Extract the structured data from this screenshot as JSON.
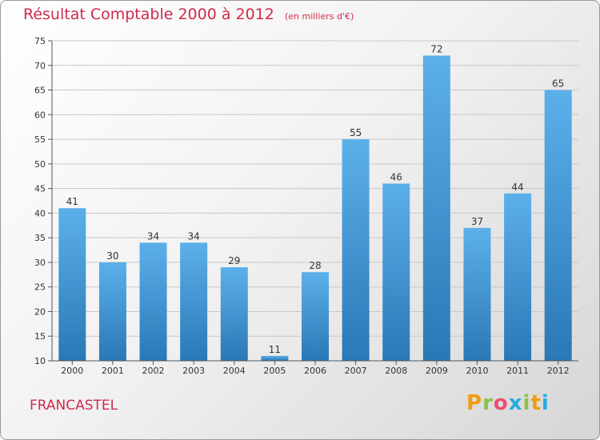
{
  "chart_data": {
    "type": "bar",
    "title": "Résultat Comptable 2000 à 2012",
    "subtitle": "(en milliers d'€)",
    "categories": [
      "2000",
      "2001",
      "2002",
      "2003",
      "2004",
      "2005",
      "2006",
      "2007",
      "2008",
      "2009",
      "2010",
      "2011",
      "2012"
    ],
    "values": [
      41,
      30,
      34,
      34,
      29,
      11,
      28,
      55,
      46,
      72,
      37,
      44,
      65
    ],
    "ylim": [
      10,
      75
    ],
    "yticks": [
      10,
      15,
      20,
      25,
      30,
      35,
      40,
      45,
      50,
      55,
      60,
      65,
      70,
      75
    ],
    "grid": true,
    "xlabel": "",
    "ylabel": ""
  },
  "location": "FRANCASTEL",
  "brand": {
    "letters": [
      "P",
      "r",
      "o",
      "x",
      "i",
      "t",
      "i"
    ],
    "colors": [
      "#f39c12",
      "#8bc34a",
      "#e94e77",
      "#29abe2",
      "#8bc34a",
      "#f39c12",
      "#29abe2"
    ]
  },
  "colors": {
    "title": "#d02a4b",
    "bar_light": "#5cb0ea",
    "bar_dark": "#2a78b6",
    "grid": "#c8c8c8"
  }
}
